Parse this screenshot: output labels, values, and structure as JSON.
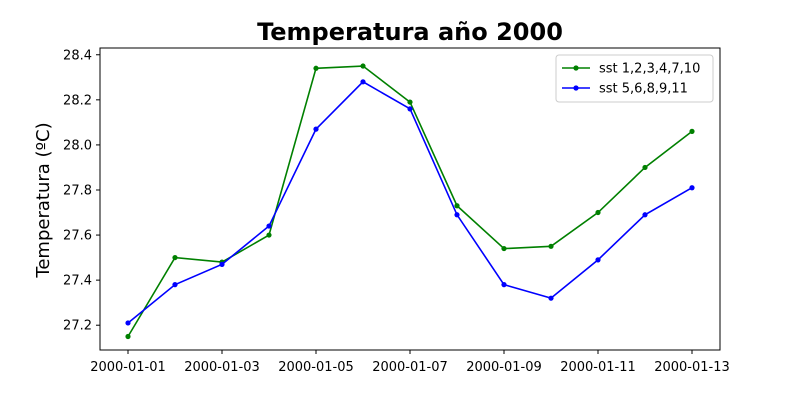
{
  "chart_data": {
    "type": "line",
    "title": "Temperatura año 2000",
    "xlabel": "",
    "ylabel": "Temperatura (ºC)",
    "x": [
      "2000-01-01",
      "2000-01-02",
      "2000-01-03",
      "2000-01-04",
      "2000-01-05",
      "2000-01-06",
      "2000-01-07",
      "2000-01-08",
      "2000-01-09",
      "2000-01-10",
      "2000-01-11",
      "2000-01-12",
      "2000-01-13"
    ],
    "x_ticks": [
      "2000-01-01",
      "2000-01-03",
      "2000-01-05",
      "2000-01-07",
      "2000-01-09",
      "2000-01-11",
      "2000-01-13"
    ],
    "ylim": [
      27.09,
      28.43
    ],
    "y_ticks": [
      "27.2",
      "27.4",
      "27.6",
      "27.8",
      "28.0",
      "28.2",
      "28.4"
    ],
    "grid": false,
    "legend_position": "top-right",
    "series": [
      {
        "name": "sst 1,2,3,4,7,10",
        "color": "#008000",
        "values": [
          27.15,
          27.5,
          27.48,
          27.6,
          28.34,
          28.35,
          28.19,
          27.73,
          27.54,
          27.55,
          27.7,
          27.9,
          28.06
        ]
      },
      {
        "name": "sst 5,6,8,9,11",
        "color": "#0000ff",
        "values": [
          27.21,
          27.38,
          27.47,
          27.64,
          28.07,
          28.28,
          28.16,
          27.69,
          27.38,
          27.32,
          27.49,
          27.69,
          27.81
        ]
      }
    ]
  }
}
